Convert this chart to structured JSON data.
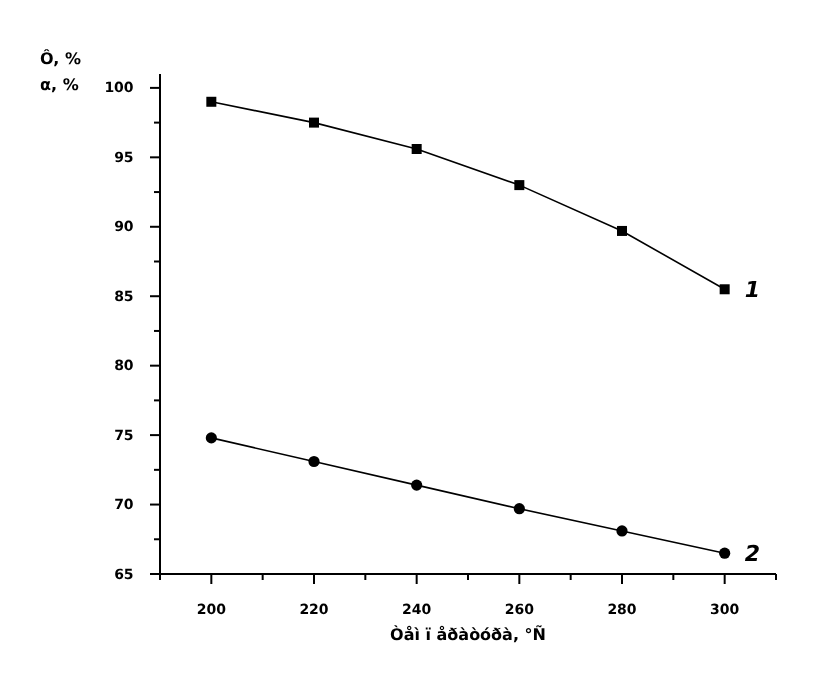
{
  "chart_data": {
    "type": "line",
    "ylabel": "Ô, %\nα, %",
    "xlabel": "Òåì ï åðàòóðà, °Ñ",
    "x": [
      200,
      220,
      240,
      260,
      280,
      300
    ],
    "series": [
      {
        "name": "1",
        "color": "#000000",
        "marker": "square",
        "values": [
          99.0,
          97.5,
          95.6,
          93.0,
          89.7,
          85.5
        ]
      },
      {
        "name": "2",
        "color": "#000000",
        "marker": "circle",
        "values": [
          74.8,
          73.1,
          71.4,
          69.7,
          68.1,
          66.5
        ]
      }
    ],
    "xlim": [
      190,
      310
    ],
    "xticks": [
      {
        "value": 190,
        "label": null
      },
      200,
      {
        "value": 210,
        "label": null
      },
      220,
      {
        "value": 230,
        "label": null
      },
      240,
      {
        "value": 250,
        "label": null
      },
      260,
      {
        "value": 270,
        "label": null
      },
      280,
      {
        "value": 290,
        "label": null
      },
      300,
      {
        "value": 310,
        "label": null
      }
    ],
    "ylim": [
      65,
      101
    ],
    "yticks": [
      65,
      {
        "value": 67.5,
        "label": null
      },
      70,
      {
        "value": 72.5,
        "label": null
      },
      75,
      {
        "value": 77.5,
        "label": null
      },
      80,
      {
        "value": 82.5,
        "label": null
      },
      85,
      {
        "value": 87.5,
        "label": null
      },
      90,
      {
        "value": 92.5,
        "label": null
      },
      95,
      {
        "value": 97.5,
        "label": null
      },
      100
    ],
    "grid": false,
    "line_style": "solid"
  }
}
